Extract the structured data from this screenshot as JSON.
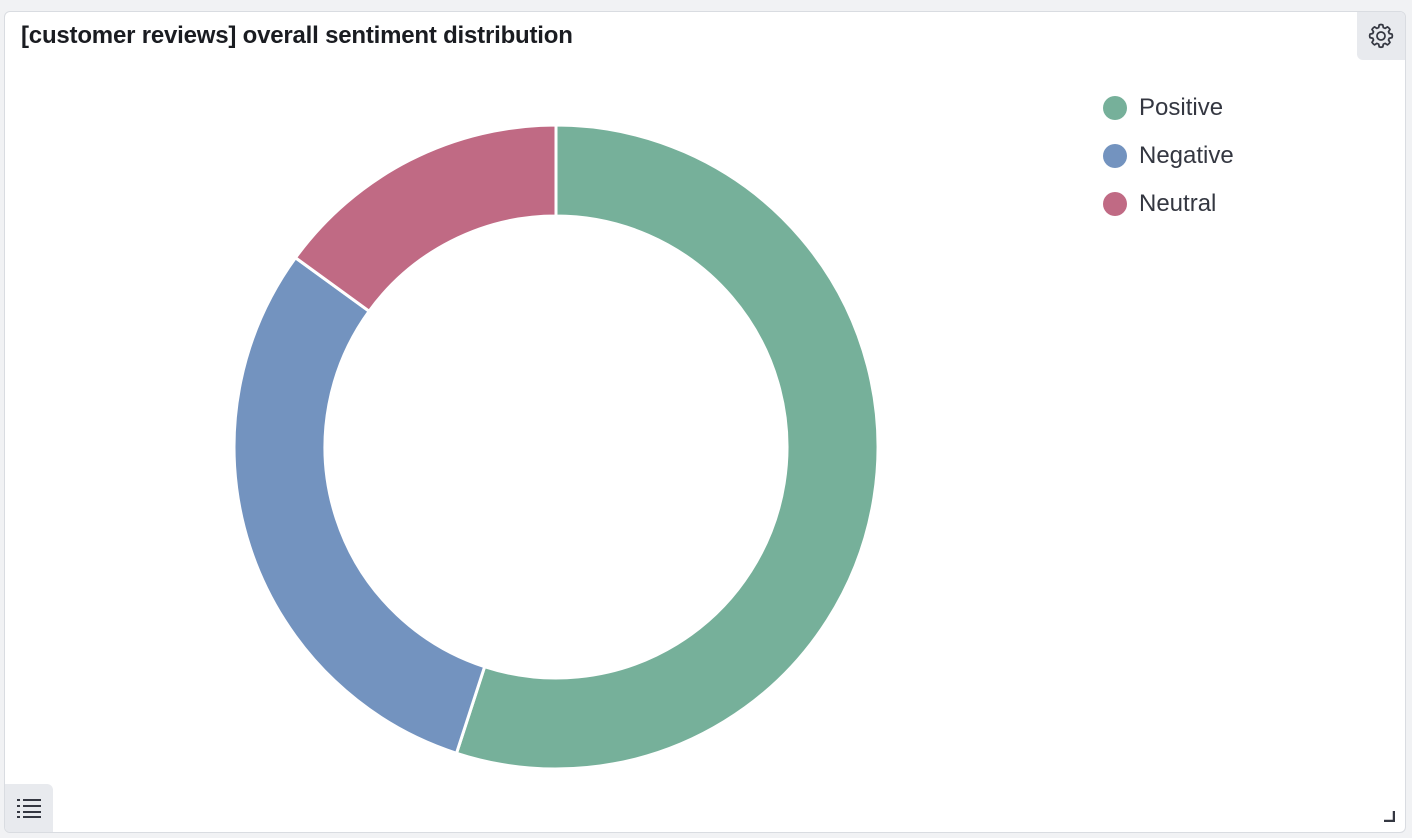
{
  "panel": {
    "title": "[customer reviews] overall sentiment distribution",
    "settings_icon": "gear-icon",
    "legend_toggle_icon": "list-icon",
    "resize_icon": "resize-corner-icon"
  },
  "chart_data": {
    "type": "pie",
    "donut": true,
    "title": "[customer reviews] overall sentiment distribution",
    "legend_position": "top-right",
    "slices": [
      {
        "label": "Positive",
        "value": 55,
        "color": "#76b09a"
      },
      {
        "label": "Negative",
        "value": 30,
        "color": "#7393bf"
      },
      {
        "label": "Neutral",
        "value": 15,
        "color": "#c06a84"
      }
    ]
  }
}
